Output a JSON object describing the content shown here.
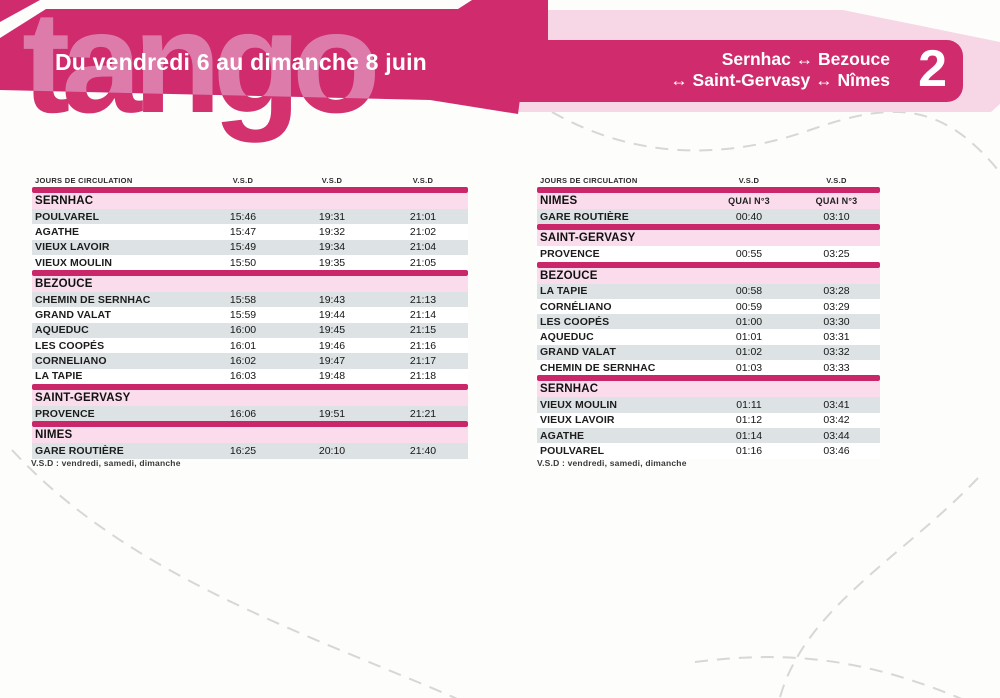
{
  "header": {
    "banner_title": "Du vendredi 6 au dimanche 8 juin",
    "logo_text": "tango",
    "route_line1": "Sernhac ↔ Bezouce",
    "route_line2": "↔ Saint-Gervasy ↔ Nîmes",
    "route_number": "2"
  },
  "colors": {
    "magenta": "#d02c6d",
    "panel_pink": "#f7d7e6",
    "section_row_pink": "#fadcec",
    "shaded_row_gray": "#dde3e5"
  },
  "footnote": "V.S.D : vendredi, samedi, dimanche",
  "left_table": {
    "columns": [
      "JOURS DE CIRCULATION",
      "V.S.D",
      "V.S.D",
      "V.S.D"
    ],
    "sections": [
      {
        "title": "SERNHAC",
        "start_shaded": true,
        "rows": [
          [
            "POULVAREL",
            "15:46",
            "19:31",
            "21:01"
          ],
          [
            "AGATHE",
            "15:47",
            "19:32",
            "21:02"
          ],
          [
            "VIEUX LAVOIR",
            "15:49",
            "19:34",
            "21:04"
          ],
          [
            "VIEUX MOULIN",
            "15:50",
            "19:35",
            "21:05"
          ]
        ]
      },
      {
        "title": "BEZOUCE",
        "start_shaded": true,
        "rows": [
          [
            "CHEMIN DE SERNHAC",
            "15:58",
            "19:43",
            "21:13"
          ],
          [
            "GRAND VALAT",
            "15:59",
            "19:44",
            "21:14"
          ],
          [
            "AQUEDUC",
            "16:00",
            "19:45",
            "21:15"
          ],
          [
            "LES COOPÉS",
            "16:01",
            "19:46",
            "21:16"
          ],
          [
            "CORNELIANO",
            "16:02",
            "19:47",
            "21:17"
          ],
          [
            "LA TAPIE",
            "16:03",
            "19:48",
            "21:18"
          ]
        ]
      },
      {
        "title": "SAINT-GERVASY",
        "start_shaded": true,
        "rows": [
          [
            "PROVENCE",
            "16:06",
            "19:51",
            "21:21"
          ]
        ]
      },
      {
        "title": "NÎMES",
        "start_shaded": true,
        "rows": [
          [
            "GARE ROUTIÈRE",
            "16:25",
            "20:10",
            "21:40"
          ]
        ]
      }
    ]
  },
  "right_table": {
    "columns": [
      "JOURS DE CIRCULATION",
      "V.S.D",
      "V.S.D"
    ],
    "sections": [
      {
        "title": "NÎMES",
        "subcells": [
          "QUAI N°3",
          "QUAI N°3"
        ],
        "start_shaded": true,
        "rows": [
          [
            "GARE ROUTIÈRE",
            "00:40",
            "03:10"
          ]
        ]
      },
      {
        "title": "SAINT-GERVASY",
        "start_shaded": false,
        "rows": [
          [
            "PROVENCE",
            "00:55",
            "03:25"
          ]
        ]
      },
      {
        "title": "BEZOUCE",
        "start_shaded": true,
        "rows": [
          [
            "LA TAPIE",
            "00:58",
            "03:28"
          ],
          [
            "CORNÉLIANO",
            "00:59",
            "03:29"
          ],
          [
            "LES COOPÉS",
            "01:00",
            "03:30"
          ],
          [
            "AQUEDUC",
            "01:01",
            "03:31"
          ],
          [
            "GRAND VALAT",
            "01:02",
            "03:32"
          ],
          [
            "CHEMIN DE SERNHAC",
            "01:03",
            "03:33"
          ]
        ]
      },
      {
        "title": "SERNHAC",
        "start_shaded": true,
        "rows": [
          [
            "VIEUX MOULIN",
            "01:11",
            "03:41"
          ],
          [
            "VIEUX LAVOIR",
            "01:12",
            "03:42"
          ],
          [
            "AGATHE",
            "01:14",
            "03:44"
          ],
          [
            "POULVAREL",
            "01:16",
            "03:46"
          ]
        ]
      }
    ]
  }
}
